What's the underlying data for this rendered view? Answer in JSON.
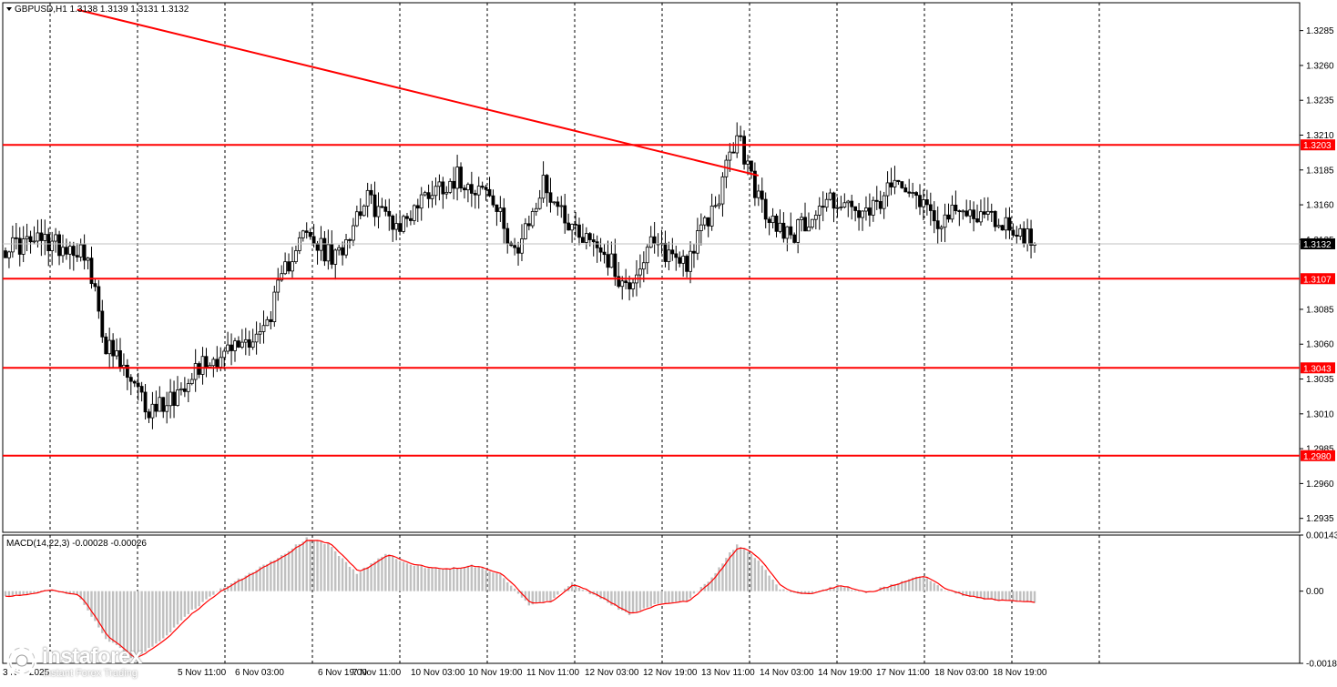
{
  "chart_data": {
    "type": "candlestick",
    "symbol": "GBPUSD,H1",
    "ohlc_text": "1.3138 1.3139 1.3131 1.3132",
    "current_price": 1.3132,
    "current_price_label": "1.3132",
    "ylim": [
      1.2925,
      1.3305
    ],
    "y_ticks": [
      "1.3285",
      "1.3260",
      "1.3235",
      "1.3210",
      "1.3185",
      "1.3160",
      "1.3135",
      "1.3085",
      "1.3060",
      "1.3035",
      "1.3010",
      "1.2985",
      "1.2960",
      "1.2935"
    ],
    "x_ticks": [
      "3 Nov 2025",
      "5 Nov 11:00",
      "6 Nov 03:00",
      "6 Nov 19:00",
      "7 Nov 11:00",
      "10 Nov 03:00",
      "10 Nov 19:00",
      "11 Nov 11:00",
      "12 Nov 03:00",
      "12 Nov 19:00",
      "13 Nov 11:00",
      "14 Nov 03:00",
      "14 Nov 19:00",
      "17 Nov 11:00",
      "18 Nov 03:00",
      "18 Nov 19:00"
    ],
    "levels": [
      {
        "value": 1.3203,
        "label": "1.3203",
        "color": "#ff0000"
      },
      {
        "value": 1.3107,
        "label": "1.3107",
        "color": "#ff0000"
      },
      {
        "value": 1.3043,
        "label": "1.3043",
        "color": "#ff0000"
      },
      {
        "value": 1.298,
        "label": "1.2980",
        "color": "#ff0000"
      }
    ],
    "trendline": {
      "bar_start": 20,
      "price_start": 1.33,
      "bar_end": 210,
      "price_end": 1.3181,
      "color": "#ff0000"
    },
    "series": [
      {
        "name": "GBPUSD,H1",
        "key_closes": [
          [
            0,
            1.313
          ],
          [
            10,
            1.3134
          ],
          [
            22,
            1.3128
          ],
          [
            28,
            1.306
          ],
          [
            40,
            1.3012
          ],
          [
            48,
            1.3025
          ],
          [
            52,
            1.3042
          ],
          [
            62,
            1.3055
          ],
          [
            72,
            1.307
          ],
          [
            82,
            1.314
          ],
          [
            92,
            1.312
          ],
          [
            100,
            1.3165
          ],
          [
            110,
            1.3145
          ],
          [
            118,
            1.317
          ],
          [
            126,
            1.318
          ],
          [
            134,
            1.317
          ],
          [
            143,
            1.3125
          ],
          [
            150,
            1.3175
          ],
          [
            158,
            1.3145
          ],
          [
            166,
            1.313
          ],
          [
            173,
            1.31
          ],
          [
            180,
            1.313
          ],
          [
            190,
            1.312
          ],
          [
            198,
            1.316
          ],
          [
            204,
            1.321
          ],
          [
            212,
            1.315
          ],
          [
            220,
            1.314
          ],
          [
            230,
            1.3165
          ],
          [
            240,
            1.315
          ],
          [
            250,
            1.318
          ],
          [
            260,
            1.315
          ],
          [
            270,
            1.3155
          ],
          [
            280,
            1.3145
          ],
          [
            287,
            1.3132
          ]
        ]
      }
    ],
    "macd": {
      "label": "MACD(14,22,3) -0.00028 -0.00026",
      "ylim": [
        -0.00184,
        0.00143
      ],
      "y_ticks": [
        "0.00143",
        "0.00",
        "-0.00184"
      ],
      "key_values": [
        [
          0,
          -0.00015
        ],
        [
          12,
          3e-05
        ],
        [
          20,
          -0.0001
        ],
        [
          28,
          -0.0012
        ],
        [
          36,
          -0.00175
        ],
        [
          44,
          -0.0012
        ],
        [
          52,
          -0.0005
        ],
        [
          60,
          5e-05
        ],
        [
          68,
          0.00045
        ],
        [
          76,
          0.00085
        ],
        [
          84,
          0.00135
        ],
        [
          90,
          0.0012
        ],
        [
          98,
          0.00045
        ],
        [
          106,
          0.00095
        ],
        [
          114,
          0.00065
        ],
        [
          122,
          0.00055
        ],
        [
          130,
          0.00065
        ],
        [
          138,
          0.00045
        ],
        [
          146,
          -0.00035
        ],
        [
          152,
          -0.00025
        ],
        [
          158,
          0.0002
        ],
        [
          166,
          -0.0002
        ],
        [
          174,
          -0.0006
        ],
        [
          182,
          -0.0003
        ],
        [
          190,
          -0.00025
        ],
        [
          196,
          0.00025
        ],
        [
          204,
          0.0012
        ],
        [
          210,
          0.0008
        ],
        [
          216,
          5e-05
        ],
        [
          224,
          -0.0001
        ],
        [
          232,
          0.00015
        ],
        [
          240,
          -5e-05
        ],
        [
          250,
          0.00025
        ],
        [
          256,
          0.0004
        ],
        [
          262,
          0.0
        ],
        [
          272,
          -0.0002
        ],
        [
          280,
          -0.00025
        ],
        [
          287,
          -0.00028
        ]
      ],
      "signal_color": "#ff0000",
      "hist_color": "#c0c0c0"
    },
    "colors": {
      "bull": "#ffffff",
      "bear": "#000000",
      "wick": "#000000",
      "grid": "#000000",
      "price_line": "#c0c0c0"
    }
  },
  "watermark": {
    "name": "instaforex",
    "tagline": "Instant Forex Trading"
  }
}
